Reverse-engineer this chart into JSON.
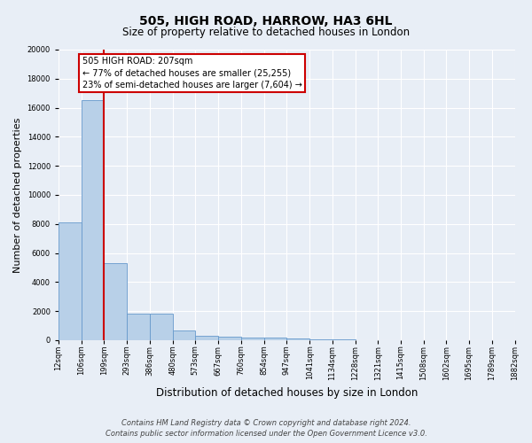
{
  "title": "505, HIGH ROAD, HARROW, HA3 6HL",
  "subtitle": "Size of property relative to detached houses in London",
  "xlabel": "Distribution of detached houses by size in London",
  "ylabel": "Number of detached properties",
  "footnote1": "Contains HM Land Registry data © Crown copyright and database right 2024.",
  "footnote2": "Contains public sector information licensed under the Open Government Licence v3.0.",
  "bins": [
    12,
    106,
    199,
    293,
    386,
    480,
    573,
    667,
    760,
    854,
    947,
    1041,
    1134,
    1228,
    1321,
    1415,
    1508,
    1602,
    1695,
    1789,
    1882
  ],
  "bin_labels": [
    "12sqm",
    "106sqm",
    "199sqm",
    "293sqm",
    "386sqm",
    "480sqm",
    "573sqm",
    "667sqm",
    "760sqm",
    "854sqm",
    "947sqm",
    "1041sqm",
    "1134sqm",
    "1228sqm",
    "1321sqm",
    "1415sqm",
    "1508sqm",
    "1602sqm",
    "1695sqm",
    "1789sqm",
    "1882sqm"
  ],
  "counts": [
    8100,
    16500,
    5300,
    1850,
    1850,
    700,
    300,
    230,
    200,
    170,
    150,
    60,
    30,
    20,
    15,
    10,
    8,
    5,
    4,
    3
  ],
  "bar_color": "#b8d0e8",
  "bar_edge_color": "#6699cc",
  "red_line_bin": 2,
  "annotation_text": "505 HIGH ROAD: 207sqm\n← 77% of detached houses are smaller (25,255)\n23% of semi-detached houses are larger (7,604) →",
  "annotation_box_color": "#ffffff",
  "annotation_box_edge": "#cc0000",
  "ylim": [
    0,
    20000
  ],
  "yticks": [
    0,
    2000,
    4000,
    6000,
    8000,
    10000,
    12000,
    14000,
    16000,
    18000,
    20000
  ],
  "bg_color": "#e8eef6",
  "grid_color": "#ffffff",
  "red_line_color": "#cc0000",
  "title_fontsize": 10,
  "subtitle_fontsize": 8.5,
  "ylabel_fontsize": 8,
  "xlabel_fontsize": 8.5,
  "tick_fontsize": 6,
  "annot_fontsize": 7,
  "footnote_fontsize": 6
}
